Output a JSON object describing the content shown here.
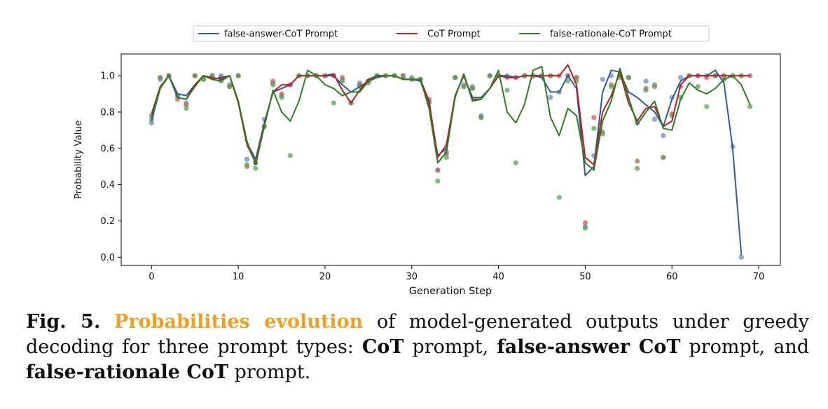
{
  "chart_data": {
    "type": "line",
    "xlabel": "Generation Step",
    "ylabel": "Probability Value",
    "xlim": [
      -3.5,
      72.5
    ],
    "ylim": [
      -0.045,
      1.12
    ],
    "xticks": [
      0,
      10,
      20,
      30,
      40,
      50,
      60,
      70
    ],
    "yticks": [
      0.0,
      0.2,
      0.4,
      0.6,
      0.8,
      1.0
    ],
    "legend_position": "top-center",
    "grid": false,
    "series": [
      {
        "name": "false-answer-CoT Prompt",
        "color": "#2e5a9c",
        "x": [
          0,
          1,
          2,
          3,
          4,
          5,
          6,
          7,
          8,
          9,
          10,
          11,
          12,
          13,
          14,
          15,
          16,
          17,
          18,
          19,
          20,
          21,
          22,
          23,
          24,
          25,
          26,
          27,
          28,
          29,
          30,
          31,
          32,
          33,
          34,
          35,
          36,
          37,
          38,
          39,
          40,
          41,
          42,
          43,
          44,
          45,
          46,
          47,
          48,
          49,
          50,
          51,
          52,
          53,
          54,
          55,
          56,
          57,
          58,
          59,
          60,
          61,
          62,
          63,
          64,
          65,
          66,
          67,
          68
        ],
        "values": [
          0.75,
          0.93,
          1.0,
          0.9,
          0.89,
          0.95,
          1.0,
          0.98,
          0.99,
          1.0,
          0.86,
          0.63,
          0.54,
          0.74,
          0.91,
          0.93,
          0.95,
          1.0,
          1.0,
          1.0,
          1.0,
          1.0,
          0.95,
          0.91,
          0.94,
          0.97,
          0.99,
          1.0,
          1.0,
          0.98,
          0.98,
          0.97,
          0.84,
          0.56,
          0.6,
          0.89,
          1.0,
          0.88,
          0.88,
          0.93,
          1.0,
          1.0,
          0.99,
          1.0,
          1.0,
          0.99,
          0.91,
          0.91,
          1.0,
          0.93,
          0.45,
          0.5,
          0.91,
          1.03,
          1.02,
          0.91,
          0.88,
          0.84,
          0.8,
          0.72,
          0.87,
          0.97,
          1.0,
          1.0,
          1.0,
          1.03,
          0.96,
          0.6,
          0.01
        ]
      },
      {
        "name": "CoT Prompt",
        "color": "#b22222",
        "x": [
          0,
          1,
          2,
          3,
          4,
          5,
          6,
          7,
          8,
          9,
          10,
          11,
          12,
          13,
          14,
          15,
          16,
          17,
          18,
          19,
          20,
          21,
          22,
          23,
          24,
          25,
          26,
          27,
          28,
          29,
          30,
          31,
          32,
          33,
          34,
          35,
          36,
          37,
          38,
          39,
          40,
          41,
          42,
          43,
          44,
          45,
          46,
          47,
          48,
          49,
          50,
          51,
          52,
          53,
          54,
          55,
          56,
          57,
          58,
          59,
          60,
          61,
          62,
          63,
          64,
          65,
          66,
          67,
          68,
          69
        ],
        "values": [
          0.79,
          0.94,
          1.0,
          0.88,
          0.87,
          0.95,
          1.0,
          0.99,
          0.98,
          1.0,
          0.85,
          0.62,
          0.52,
          0.73,
          0.91,
          0.95,
          0.95,
          1.0,
          1.0,
          1.0,
          1.0,
          1.01,
          0.92,
          0.85,
          0.92,
          0.98,
          1.0,
          1.0,
          1.0,
          0.98,
          0.98,
          0.98,
          0.86,
          0.55,
          0.62,
          0.89,
          1.0,
          0.87,
          0.87,
          0.93,
          1.0,
          0.99,
          0.99,
          1.0,
          1.0,
          1.0,
          1.0,
          1.0,
          1.06,
          0.95,
          0.55,
          0.51,
          0.8,
          0.89,
          1.02,
          0.85,
          0.75,
          0.82,
          0.83,
          0.72,
          0.75,
          0.95,
          1.0,
          1.0,
          1.0,
          1.0,
          1.0,
          1.0,
          1.0,
          1.0
        ]
      },
      {
        "name": "false-rationale-CoT Prompt",
        "color": "#2e7d1e",
        "x": [
          0,
          1,
          2,
          3,
          4,
          5,
          6,
          7,
          8,
          9,
          10,
          11,
          12,
          13,
          14,
          15,
          16,
          17,
          18,
          19,
          20,
          21,
          22,
          23,
          24,
          25,
          26,
          27,
          28,
          29,
          30,
          31,
          32,
          33,
          34,
          35,
          36,
          37,
          38,
          39,
          40,
          41,
          42,
          43,
          44,
          45,
          46,
          47,
          48,
          49,
          50,
          51,
          52,
          53,
          54,
          55,
          56,
          57,
          58,
          59,
          60,
          61,
          62,
          63,
          64,
          65,
          66,
          67,
          68,
          69
        ],
        "values": [
          0.77,
          0.93,
          1.0,
          0.88,
          0.87,
          0.94,
          1.0,
          0.98,
          0.97,
          1.0,
          0.86,
          0.64,
          0.51,
          0.72,
          0.92,
          0.8,
          0.75,
          0.86,
          1.03,
          1.0,
          0.95,
          0.93,
          0.89,
          0.91,
          0.91,
          0.97,
          1.0,
          1.0,
          1.0,
          0.98,
          0.98,
          0.98,
          0.82,
          0.52,
          0.58,
          0.88,
          1.01,
          0.86,
          0.87,
          0.93,
          1.03,
          0.8,
          0.74,
          0.84,
          1.03,
          1.05,
          0.77,
          0.67,
          0.82,
          0.78,
          0.52,
          0.48,
          0.75,
          0.86,
          1.04,
          0.88,
          0.73,
          0.8,
          0.86,
          0.71,
          0.7,
          0.87,
          0.96,
          0.92,
          0.9,
          0.93,
          0.98,
          1.0,
          0.95,
          0.84
        ]
      }
    ],
    "scatter_points": [
      {
        "series": 0,
        "points": [
          [
            0,
            0.74
          ],
          [
            1,
            0.98
          ],
          [
            2,
            1.0
          ],
          [
            3,
            0.89
          ],
          [
            4,
            0.85
          ],
          [
            5,
            1.0
          ],
          [
            6,
            0.98
          ],
          [
            7,
            1.0
          ],
          [
            8,
            1.0
          ],
          [
            9,
            0.95
          ],
          [
            10,
            1.0
          ],
          [
            11,
            0.54
          ],
          [
            12,
            0.52
          ],
          [
            13,
            0.76
          ],
          [
            14,
            0.96
          ],
          [
            15,
            0.89
          ],
          [
            16,
            0.95
          ],
          [
            17,
            1.0
          ],
          [
            18,
            1.0
          ],
          [
            19,
            1.0
          ],
          [
            20,
            1.0
          ],
          [
            21,
            1.0
          ],
          [
            22,
            0.98
          ],
          [
            23,
            0.85
          ],
          [
            24,
            0.96
          ],
          [
            25,
            0.97
          ],
          [
            26,
            1.0
          ],
          [
            27,
            1.0
          ],
          [
            28,
            1.0
          ],
          [
            29,
            1.0
          ],
          [
            30,
            0.99
          ],
          [
            31,
            0.98
          ],
          [
            32,
            0.86
          ],
          [
            33,
            0.48
          ],
          [
            34,
            0.58
          ],
          [
            35,
            0.99
          ],
          [
            36,
            0.95
          ],
          [
            37,
            0.94
          ],
          [
            38,
            0.78
          ],
          [
            39,
            1.0
          ],
          [
            40,
            1.0
          ],
          [
            41,
            1.0
          ],
          [
            42,
            0.99
          ],
          [
            43,
            1.0
          ],
          [
            44,
            1.0
          ],
          [
            45,
            1.0
          ],
          [
            46,
            0.88
          ],
          [
            47,
            0.91
          ],
          [
            48,
            1.0
          ],
          [
            49,
            0.99
          ],
          [
            50,
            0.17
          ],
          [
            51,
            0.56
          ],
          [
            52,
            0.98
          ],
          [
            53,
            1.0
          ],
          [
            54,
            0.99
          ],
          [
            55,
            0.99
          ],
          [
            56,
            0.74
          ],
          [
            57,
            0.97
          ],
          [
            58,
            0.76
          ],
          [
            59,
            0.67
          ],
          [
            60,
            0.88
          ],
          [
            61,
            0.99
          ],
          [
            62,
            1.0
          ],
          [
            63,
            1.0
          ],
          [
            64,
            1.0
          ],
          [
            65,
            1.0
          ],
          [
            66,
            1.0
          ],
          [
            67,
            0.61
          ],
          [
            68,
            0.0
          ]
        ]
      },
      {
        "series": 1,
        "points": [
          [
            0,
            0.78
          ],
          [
            1,
            0.99
          ],
          [
            2,
            1.0
          ],
          [
            3,
            0.87
          ],
          [
            4,
            0.84
          ],
          [
            5,
            1.0
          ],
          [
            6,
            0.99
          ],
          [
            7,
            1.0
          ],
          [
            8,
            0.99
          ],
          [
            9,
            0.94
          ],
          [
            10,
            1.0
          ],
          [
            11,
            0.5
          ],
          [
            12,
            0.52
          ],
          [
            13,
            0.72
          ],
          [
            14,
            0.97
          ],
          [
            15,
            0.9
          ],
          [
            16,
            0.95
          ],
          [
            17,
            1.0
          ],
          [
            18,
            1.0
          ],
          [
            19,
            1.0
          ],
          [
            20,
            1.0
          ],
          [
            21,
            1.0
          ],
          [
            22,
            0.99
          ],
          [
            23,
            0.85
          ],
          [
            24,
            0.95
          ],
          [
            25,
            0.97
          ],
          [
            26,
            1.0
          ],
          [
            27,
            1.0
          ],
          [
            28,
            1.0
          ],
          [
            29,
            1.0
          ],
          [
            30,
            0.98
          ],
          [
            31,
            0.98
          ],
          [
            32,
            0.87
          ],
          [
            33,
            0.48
          ],
          [
            34,
            0.57
          ],
          [
            35,
            0.99
          ],
          [
            36,
            0.94
          ],
          [
            37,
            0.93
          ],
          [
            38,
            0.77
          ],
          [
            39,
            1.0
          ],
          [
            40,
            1.0
          ],
          [
            41,
            0.99
          ],
          [
            42,
            0.99
          ],
          [
            43,
            1.0
          ],
          [
            44,
            1.0
          ],
          [
            45,
            1.0
          ],
          [
            46,
            1.0
          ],
          [
            47,
            1.0
          ],
          [
            48,
            1.0
          ],
          [
            49,
            0.99
          ],
          [
            50,
            0.19
          ],
          [
            51,
            0.77
          ],
          [
            52,
            0.68
          ],
          [
            53,
            0.95
          ],
          [
            54,
            1.0
          ],
          [
            55,
            0.99
          ],
          [
            56,
            0.53
          ],
          [
            57,
            0.93
          ],
          [
            58,
            0.94
          ],
          [
            59,
            0.55
          ],
          [
            60,
            0.79
          ],
          [
            61,
            0.94
          ],
          [
            62,
            1.0
          ],
          [
            63,
            1.0
          ],
          [
            64,
            0.99
          ],
          [
            65,
            1.0
          ],
          [
            66,
            1.0
          ],
          [
            67,
            1.0
          ],
          [
            68,
            1.0
          ],
          [
            69,
            1.0
          ]
        ]
      },
      {
        "series": 2,
        "points": [
          [
            0,
            0.76
          ],
          [
            1,
            0.99
          ],
          [
            2,
            1.0
          ],
          [
            3,
            0.89
          ],
          [
            4,
            0.82
          ],
          [
            5,
            1.0
          ],
          [
            6,
            0.98
          ],
          [
            7,
            1.0
          ],
          [
            8,
            0.97
          ],
          [
            9,
            0.94
          ],
          [
            10,
            1.0
          ],
          [
            11,
            0.51
          ],
          [
            12,
            0.49
          ],
          [
            13,
            0.72
          ],
          [
            14,
            0.95
          ],
          [
            15,
            0.88
          ],
          [
            16,
            0.56
          ],
          [
            17,
            1.0
          ],
          [
            18,
            1.0
          ],
          [
            19,
            1.0
          ],
          [
            20,
            1.0
          ],
          [
            21,
            0.85
          ],
          [
            22,
            0.97
          ],
          [
            23,
            0.85
          ],
          [
            24,
            0.94
          ],
          [
            25,
            0.96
          ],
          [
            26,
            1.0
          ],
          [
            27,
            1.0
          ],
          [
            28,
            1.0
          ],
          [
            29,
            0.99
          ],
          [
            30,
            0.98
          ],
          [
            31,
            0.98
          ],
          [
            32,
            0.85
          ],
          [
            33,
            0.42
          ],
          [
            34,
            0.55
          ],
          [
            35,
            0.99
          ],
          [
            36,
            0.94
          ],
          [
            37,
            0.93
          ],
          [
            38,
            0.77
          ],
          [
            39,
            1.0
          ],
          [
            40,
            1.0
          ],
          [
            41,
            0.92
          ],
          [
            42,
            0.52
          ],
          [
            43,
            1.0
          ],
          [
            44,
            1.0
          ],
          [
            45,
            1.0
          ],
          [
            46,
            1.0
          ],
          [
            47,
            0.33
          ],
          [
            48,
            0.97
          ],
          [
            49,
            0.97
          ],
          [
            50,
            0.16
          ],
          [
            51,
            0.71
          ],
          [
            52,
            0.69
          ],
          [
            53,
            0.94
          ],
          [
            54,
            1.0
          ],
          [
            55,
            0.99
          ],
          [
            56,
            0.49
          ],
          [
            57,
            0.92
          ],
          [
            58,
            0.95
          ],
          [
            59,
            0.55
          ],
          [
            60,
            0.78
          ],
          [
            61,
            0.88
          ],
          [
            62,
            1.0
          ],
          [
            63,
            0.94
          ],
          [
            64,
            0.83
          ],
          [
            65,
            1.0
          ],
          [
            66,
            0.98
          ],
          [
            67,
            1.0
          ],
          [
            68,
            1.0
          ],
          [
            69,
            0.83
          ]
        ]
      }
    ]
  },
  "caption": {
    "fig_label": "Fig. 5.",
    "highlight": "Probabilities evolution",
    "text1": " of model-generated outputs under greedy decoding for three prompt types: ",
    "b1": "CoT",
    "text2": " prompt, ",
    "b2": "false-answer CoT",
    "text3": " prompt, and ",
    "b3": "false-rationale CoT",
    "text4": " prompt."
  }
}
